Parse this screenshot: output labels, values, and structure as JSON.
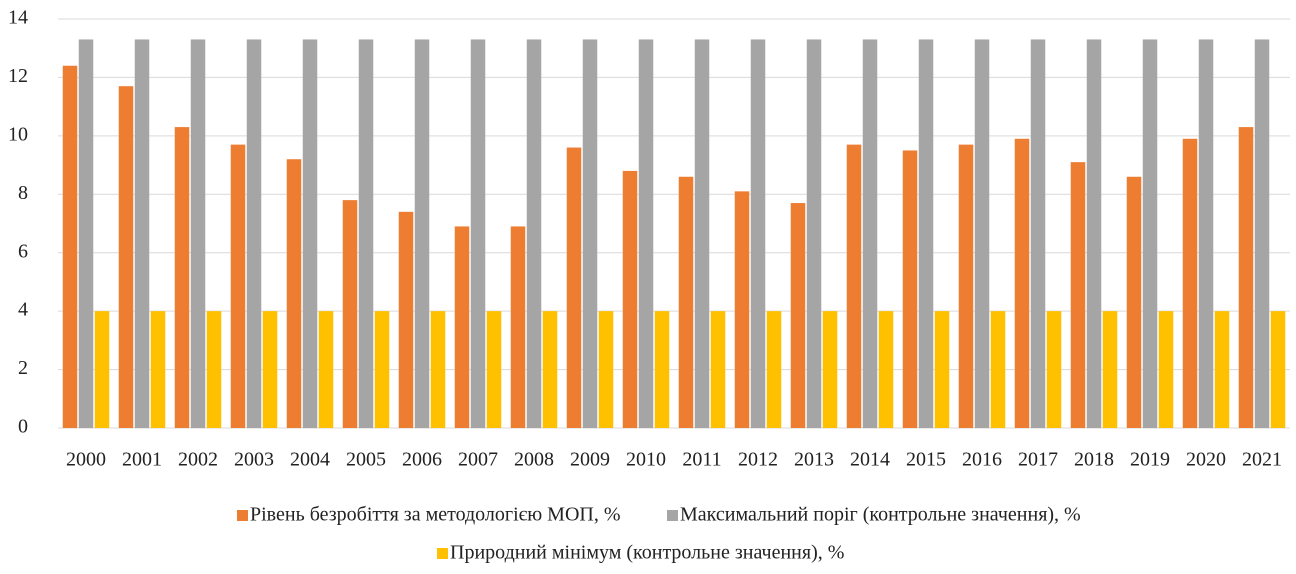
{
  "chart_data": {
    "type": "bar",
    "categories": [
      "2000",
      "2001",
      "2002",
      "2003",
      "2004",
      "2005",
      "2006",
      "2007",
      "2008",
      "2009",
      "2010",
      "2011",
      "2012",
      "2013",
      "2014",
      "2015",
      "2016",
      "2017",
      "2018",
      "2019",
      "2020",
      "2021"
    ],
    "series": [
      {
        "name": "Рівень безробіття за методологією МОП, %",
        "color": "#ed7d31",
        "values": [
          12.4,
          11.7,
          10.3,
          9.7,
          9.2,
          7.8,
          7.4,
          6.9,
          6.9,
          9.6,
          8.8,
          8.6,
          8.1,
          7.7,
          9.7,
          9.5,
          9.7,
          9.9,
          9.1,
          8.6,
          9.9,
          10.3
        ]
      },
      {
        "name": "Максимальний поріг (контрольне значення), %",
        "color": "#a5a5a5",
        "values": [
          13.3,
          13.3,
          13.3,
          13.3,
          13.3,
          13.3,
          13.3,
          13.3,
          13.3,
          13.3,
          13.3,
          13.3,
          13.3,
          13.3,
          13.3,
          13.3,
          13.3,
          13.3,
          13.3,
          13.3,
          13.3,
          13.3
        ]
      },
      {
        "name": "Природний мінімум (контрольне значення), %",
        "color": "#ffc000",
        "values": [
          4,
          4,
          4,
          4,
          4,
          4,
          4,
          4,
          4,
          4,
          4,
          4,
          4,
          4,
          4,
          4,
          4,
          4,
          4,
          4,
          4,
          4
        ]
      }
    ],
    "ylim": [
      0,
      14
    ],
    "yticks": [
      0,
      2,
      4,
      6,
      8,
      10,
      12,
      14
    ],
    "grid": true,
    "legend": "bottom"
  }
}
